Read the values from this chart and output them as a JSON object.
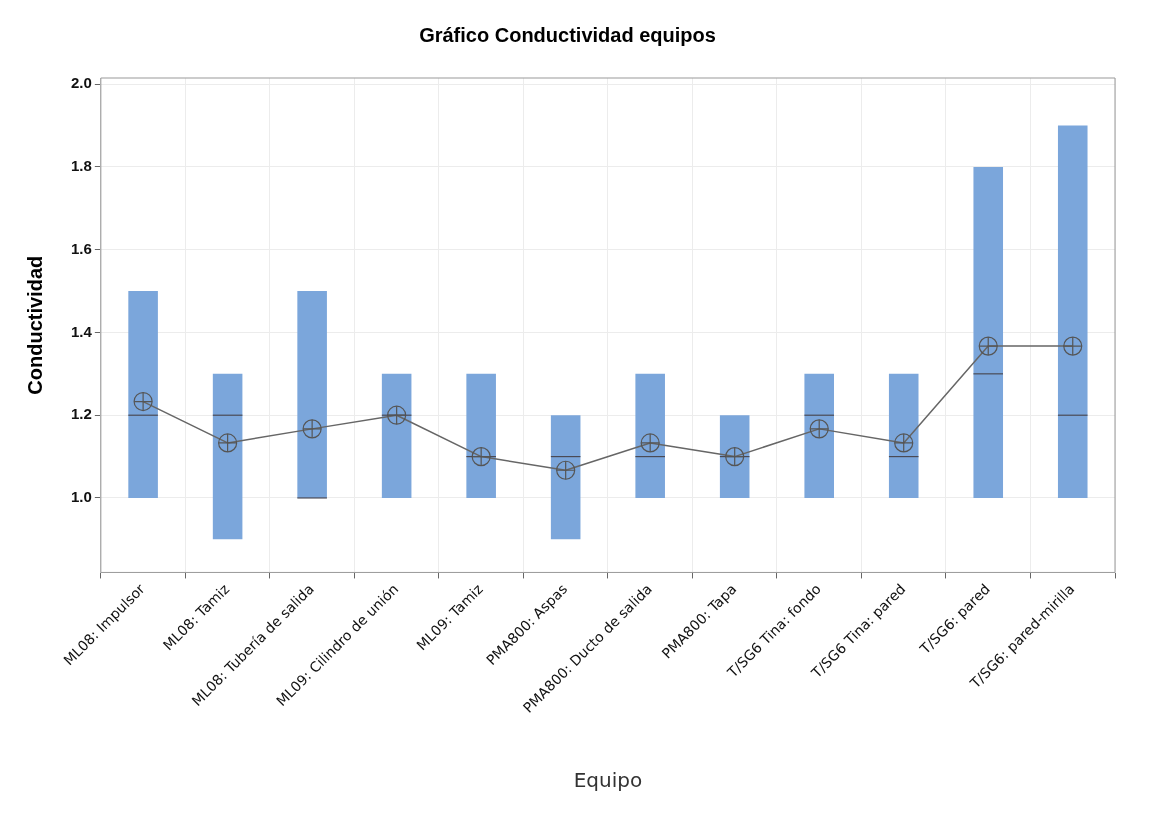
{
  "chart_data": {
    "type": "box",
    "title": "Gráfico Conductividad equipos",
    "xlabel": "Equipo",
    "ylabel": "Conductividad",
    "categories": [
      "ML08: Impulsor",
      "ML08: Tamiz",
      "ML08: Tubería de salida",
      "ML09: Cilindro de unión",
      "ML09: Tamiz",
      "PMA800: Aspas",
      "PMA800: Ducto de salida",
      "PMA800: Tapa",
      "T/SG6 Tina: fondo",
      "T/SG6 Tina: pared",
      "T/SG6: pared",
      "T/SG6: pared-mirilla"
    ],
    "ylim": [
      0.82,
      2.015
    ],
    "yticks": [
      {
        "value": 1,
        "label": "1.0"
      },
      1.2,
      1.4,
      1.6,
      1.8,
      {
        "value": 2,
        "label": "2.0"
      }
    ],
    "grid": true,
    "legend": false,
    "series": [
      {
        "type": "box",
        "color": "#7ba6db",
        "boxes": [
          {
            "low": 1.0,
            "q1": 1.0,
            "median": 1.2,
            "q3": 1.5,
            "high": 1.5
          },
          {
            "low": 0.9,
            "q1": 0.9,
            "median": 1.2,
            "q3": 1.3,
            "high": 1.3
          },
          {
            "low": 1.0,
            "q1": 1.0,
            "median": 1.0,
            "q3": 1.5,
            "high": 1.5
          },
          {
            "low": 1.0,
            "q1": 1.0,
            "median": 1.2,
            "q3": 1.3,
            "high": 1.3
          },
          {
            "low": 1.0,
            "q1": 1.0,
            "median": 1.1,
            "q3": 1.3,
            "high": 1.3
          },
          {
            "low": 0.9,
            "q1": 0.9,
            "median": 1.1,
            "q3": 1.2,
            "high": 1.2
          },
          {
            "low": 1.0,
            "q1": 1.0,
            "median": 1.1,
            "q3": 1.3,
            "high": 1.3
          },
          {
            "low": 1.0,
            "q1": 1.0,
            "median": 1.1,
            "q3": 1.2,
            "high": 1.2
          },
          {
            "low": 1.0,
            "q1": 1.0,
            "median": 1.2,
            "q3": 1.3,
            "high": 1.3
          },
          {
            "low": 1.0,
            "q1": 1.0,
            "median": 1.1,
            "q3": 1.3,
            "high": 1.3
          },
          {
            "low": 1.0,
            "q1": 1.0,
            "median": 1.3,
            "q3": 1.8,
            "high": 1.8
          },
          {
            "low": 1.0,
            "q1": 1.0,
            "median": 1.2,
            "q3": 1.9,
            "high": 1.9
          }
        ]
      },
      {
        "type": "line",
        "color": "#666666",
        "marker": "circle",
        "values": [
          1.233,
          1.133,
          1.167,
          1.2,
          1.1,
          1.067,
          1.133,
          1.1,
          1.167,
          1.133,
          1.367,
          1.367
        ]
      }
    ]
  }
}
